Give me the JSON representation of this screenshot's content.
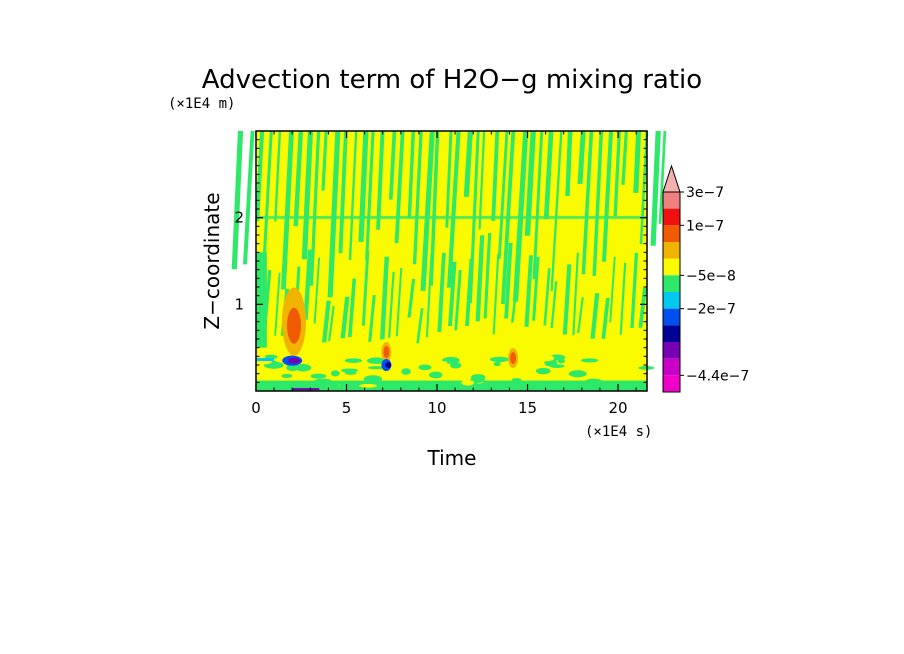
{
  "chart_data": {
    "type": "heatmap",
    "title": "Advection term of H2O−g mixing ratio",
    "xlabel": "Time",
    "ylabel": "Z−coordinate",
    "x_unit": "(×1E4 s)",
    "y_unit": "(×1E4 m)",
    "xlim": [
      0,
      21.6
    ],
    "ylim": [
      0,
      3.0
    ],
    "x_ticks": [
      0,
      5,
      10,
      15,
      20
    ],
    "x_tick_labels": [
      "0",
      "5",
      "10",
      "15",
      "20"
    ],
    "y_ticks": [
      1,
      2
    ],
    "y_tick_labels": [
      "1",
      "2"
    ],
    "grid": false,
    "colorbar": {
      "position": "right",
      "extend": "max",
      "levels": [
        3e-07,
        2e-07,
        1e-07,
        5e-08,
        0,
        -5e-08,
        -1e-07,
        -2e-07,
        -3e-07,
        -4e-07,
        -4.4e-07
      ],
      "colors": [
        "#f08080",
        "#f01010",
        "#f05a00",
        "#f0b400",
        "#fafa00",
        "#2ee86a",
        "#00c8f0",
        "#0050f0",
        "#000096",
        "#7800b4",
        "#c800c8",
        "#f000c8"
      ],
      "extend_color": "#f5b0b0",
      "labels": [
        "3e−7",
        "1e−7",
        "−5e−8",
        "−2e−7",
        "−4.4e−7"
      ]
    },
    "features": [
      {
        "t": 2.1,
        "z": 0.8,
        "value": 1.5e-07
      },
      {
        "t": 2.0,
        "z": 0.35,
        "value": -3e-07
      },
      {
        "t": 7.2,
        "z": 0.45,
        "value": 1e-07
      },
      {
        "t": 7.2,
        "z": 0.3,
        "value": -2e-07
      },
      {
        "t": 14.2,
        "z": 0.38,
        "value": 1e-07
      }
    ]
  }
}
